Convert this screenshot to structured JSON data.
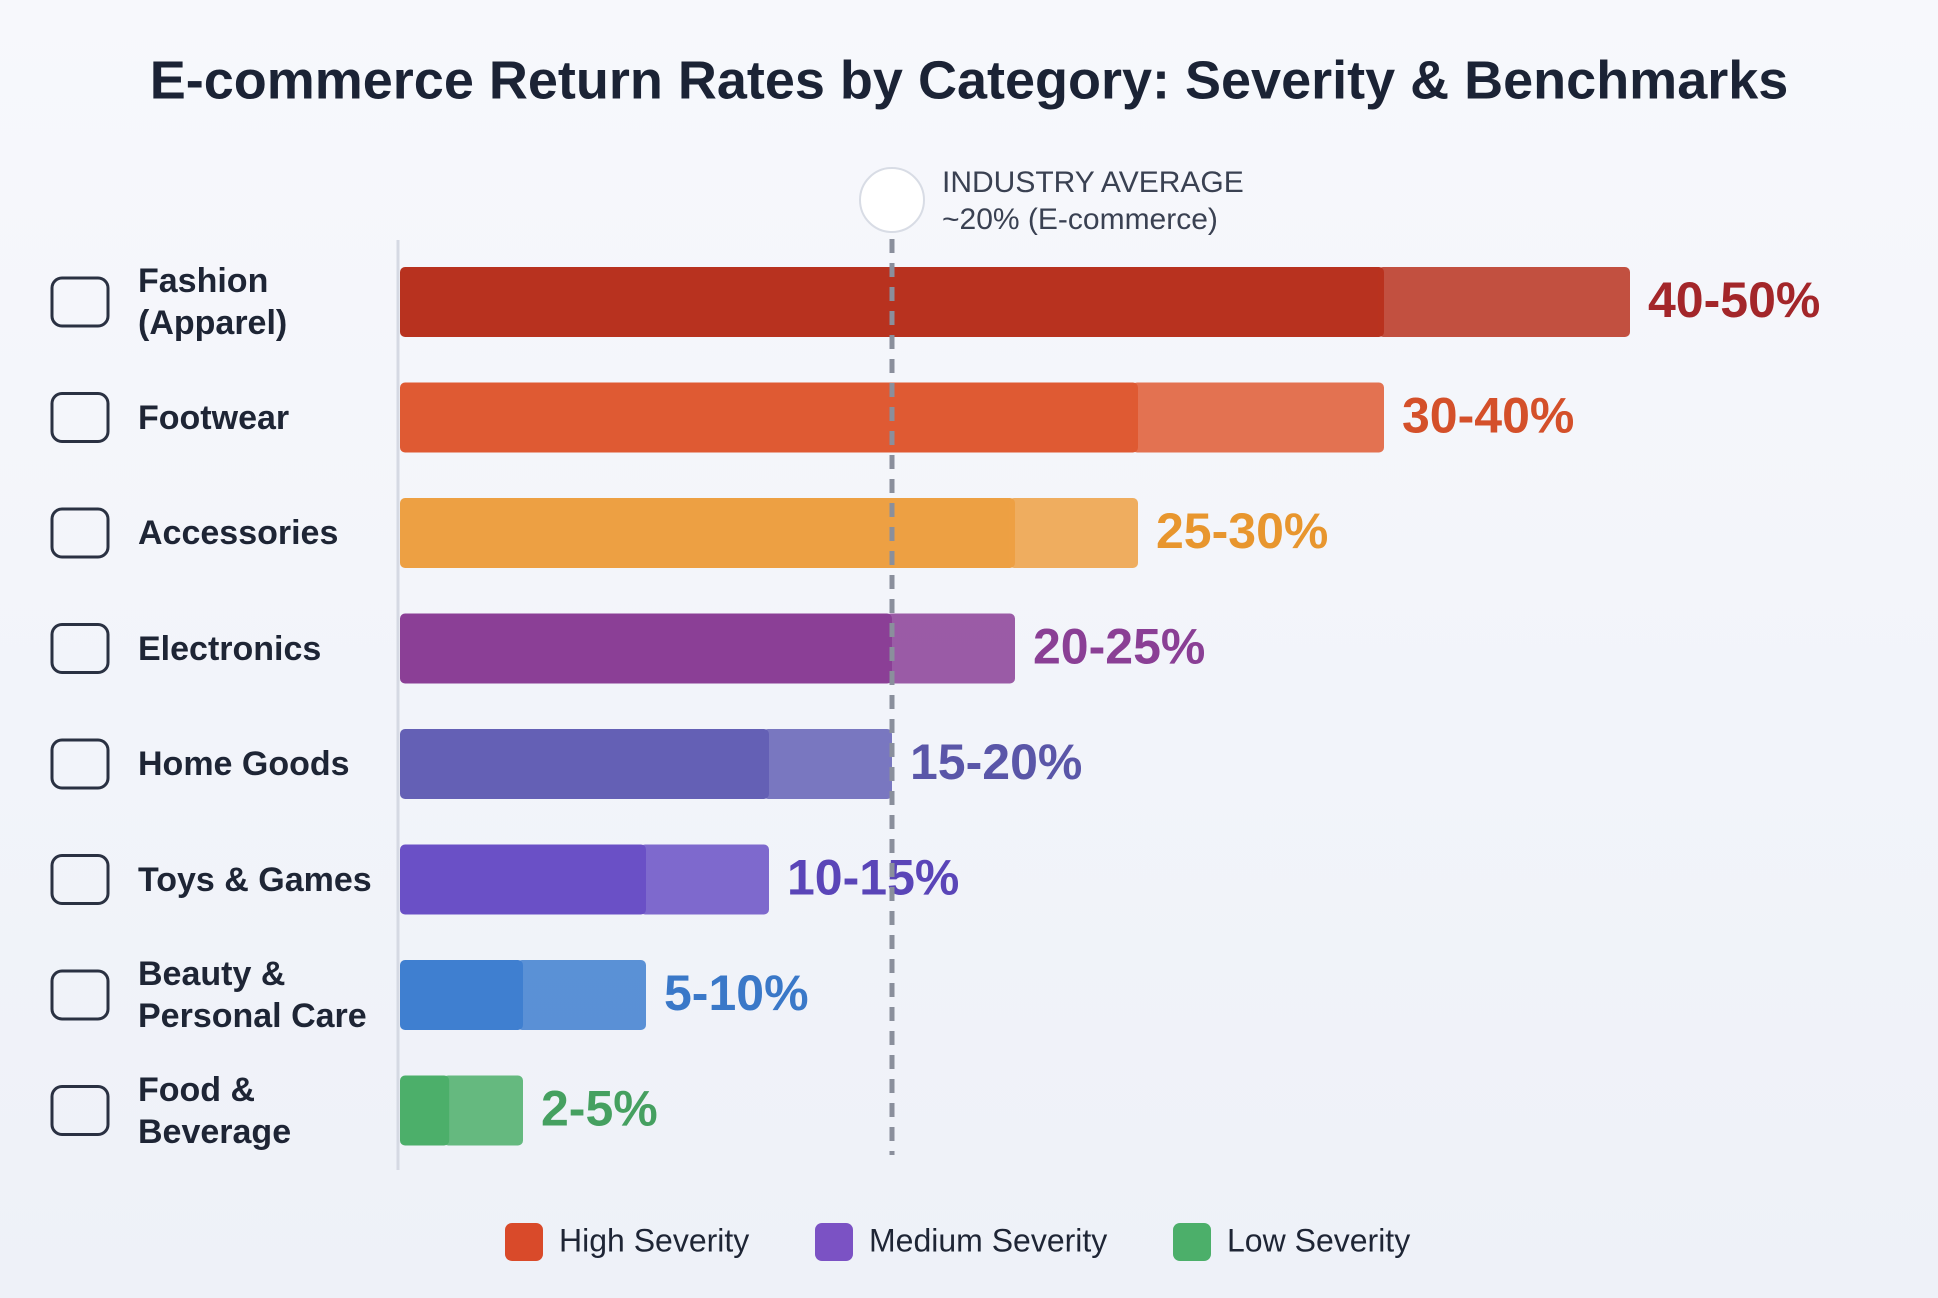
{
  "chart_data": {
    "type": "range-bar",
    "title": "E-commerce Return Rates by Category: Severity & Benchmarks",
    "categories": [
      "Fashion\n(Apparel)",
      "Footwear",
      "Accessories",
      "Electronics",
      "Home Goods",
      "Toys & Games",
      "Beauty &\nPersonal Care",
      "Food &\nBeverage"
    ],
    "values": [
      [
        40,
        50
      ],
      [
        30,
        40
      ],
      [
        25,
        30
      ],
      [
        20,
        25
      ],
      [
        15,
        20
      ],
      [
        10,
        15
      ],
      [
        5,
        10
      ],
      [
        2,
        5
      ]
    ],
    "value_labels": [
      "40-50%",
      "30-40%",
      "25-30%",
      "20-25%",
      "15-20%",
      "10-15%",
      "5-10%",
      "2-5%"
    ],
    "colors": [
      "#b8321f",
      "#df5a33",
      "#eda043",
      "#8b3f96",
      "#6460b5",
      "#6a50c6",
      "#3f7fd0",
      "#4caf6a"
    ],
    "label_colors": [
      "#a3262a",
      "#d4502a",
      "#e8962e",
      "#8a3f95",
      "#5a56a8",
      "#5a45b8",
      "#3a78c8",
      "#45a060"
    ],
    "reference_line": {
      "value": 20,
      "label": "INDUSTRY AVERAGE",
      "text": "~20% (E-commerce)"
    },
    "legend": [
      {
        "name": "High Severity",
        "color": "#d94a2a"
      },
      {
        "name": "Medium Severity",
        "color": "#7b52c4"
      },
      {
        "name": "Low Severity",
        "color": "#4caf6a"
      }
    ]
  }
}
